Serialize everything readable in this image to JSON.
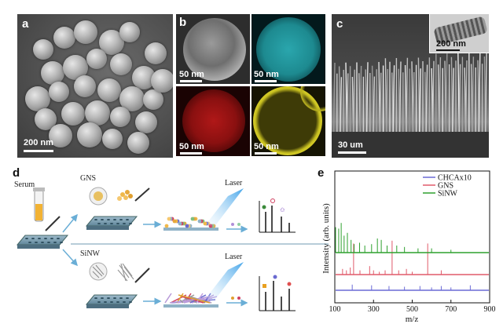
{
  "panels": {
    "a": {
      "letter": "a",
      "scale": "200 nm"
    },
    "b": {
      "letter": "b",
      "scales": [
        "50 nm",
        "50 nm",
        "50 nm",
        "50 nm"
      ]
    },
    "c": {
      "letter": "c",
      "scale": "30 um",
      "inset_scale": "200 nm"
    },
    "d": {
      "letter": "d",
      "serum": "Serum",
      "gns": "GNS",
      "sinw": "SiNW",
      "laser_top": "Laser",
      "laser_bottom": "Laser"
    },
    "e": {
      "letter": "e",
      "ylabel": "Intensity (arb. units)",
      "xlabel": "m/z",
      "xticks": [
        "100",
        "300",
        "500",
        "700",
        "900"
      ],
      "legend": [
        {
          "name": "CHCAx10",
          "color": "#6b6bd6"
        },
        {
          "name": "GNS",
          "color": "#e05a6a"
        },
        {
          "name": "SiNW",
          "color": "#2ea02e"
        }
      ]
    }
  },
  "chart_data": {
    "type": "line",
    "xlabel": "m/z",
    "ylabel": "Intensity (arb. units)",
    "xlim": [
      100,
      900
    ],
    "series": [
      {
        "name": "CHCAx10",
        "x": [
          190,
          290,
          380,
          460,
          540,
          600,
          650,
          700,
          800
        ],
        "values": [
          0.4,
          0.35,
          0.3,
          0.25,
          0.3,
          0.2,
          0.3,
          0.2,
          0.35
        ]
      },
      {
        "name": "GNS",
        "x": [
          140,
          160,
          180,
          197,
          230,
          280,
          300,
          330,
          360,
          396,
          430,
          470,
          500,
          580,
          650
        ],
        "values": [
          0.4,
          0.3,
          0.5,
          2.2,
          0.3,
          0.6,
          0.3,
          0.2,
          0.3,
          2.4,
          0.3,
          0.4,
          0.2,
          2.2,
          0.3
        ]
      },
      {
        "name": "SiNW",
        "x": [
          104,
          120,
          133,
          148,
          165,
          184,
          200,
          228,
          255,
          290,
          320,
          340,
          370,
          420,
          460,
          530,
          600,
          700
        ],
        "values": [
          1.8,
          1.7,
          2.1,
          1.2,
          1.4,
          0.9,
          0.6,
          0.7,
          0.5,
          0.6,
          1.0,
          0.9,
          0.5,
          0.5,
          0.4,
          0.3,
          0.3,
          0.2
        ]
      }
    ]
  }
}
